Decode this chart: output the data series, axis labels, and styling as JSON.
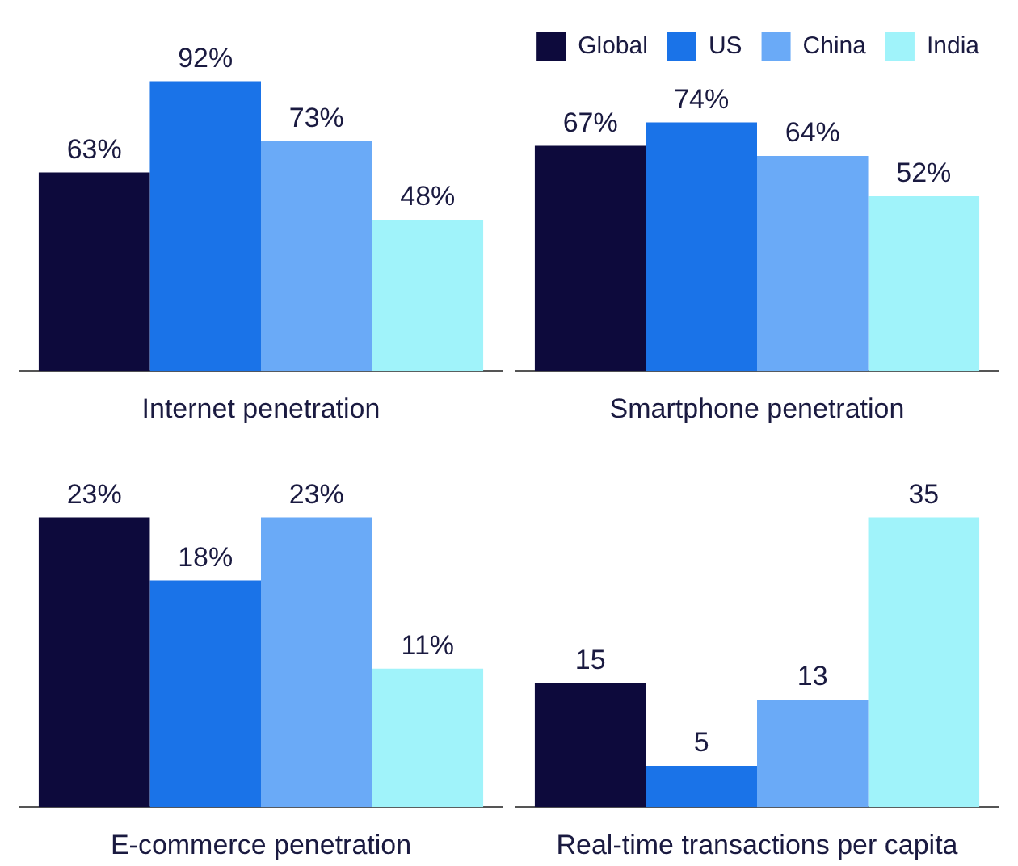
{
  "chart_data": [
    {
      "type": "bar",
      "xlabel": "Internet penetration",
      "categories": [
        null
      ],
      "series": [
        {
          "color": "#0d0a3c",
          "values": [
            63
          ],
          "value_labels": [
            "63%"
          ]
        },
        {
          "color": "#1a73e8",
          "values": [
            92
          ],
          "value_labels": [
            "92%"
          ]
        },
        {
          "color": "#6aaaf7",
          "values": [
            73
          ],
          "value_labels": [
            "73%"
          ]
        },
        {
          "color": "#a0f3fa",
          "values": [
            48
          ],
          "value_labels": [
            "48%"
          ]
        }
      ]
    },
    {
      "type": "bar",
      "xlabel": "Smartphone penetration",
      "legend": "top right",
      "categories": [
        null
      ],
      "series": [
        {
          "name": "Global",
          "color": "#0d0a3c",
          "values": [
            67
          ],
          "value_labels": [
            "67%"
          ]
        },
        {
          "name": "US",
          "color": "#1a73e8",
          "values": [
            74
          ],
          "value_labels": [
            "74%"
          ]
        },
        {
          "name": "China",
          "color": "#6aaaf7",
          "values": [
            64
          ],
          "value_labels": [
            "64%"
          ]
        },
        {
          "name": "India",
          "color": "#a0f3fa",
          "values": [
            52
          ],
          "value_labels": [
            "52%"
          ]
        }
      ]
    },
    {
      "type": "bar",
      "xlabel": "E-commerce penetration",
      "categories": [
        null
      ],
      "series": [
        {
          "color": "#0d0a3c",
          "values": [
            23
          ],
          "value_labels": [
            "23%"
          ]
        },
        {
          "color": "#1a73e8",
          "values": [
            18
          ],
          "value_labels": [
            "18%"
          ]
        },
        {
          "color": "#6aaaf7",
          "values": [
            23
          ],
          "value_labels": [
            "23%"
          ]
        },
        {
          "color": "#a0f3fa",
          "values": [
            11
          ],
          "value_labels": [
            "11%"
          ]
        }
      ]
    },
    {
      "type": "bar",
      "xlabel": "Real-time transactions per capita",
      "data_labels": true,
      "categories": [
        null
      ],
      "series": [
        {
          "color": "#0d0a3c",
          "values": [
            15
          ]
        },
        {
          "color": "#1a73e8",
          "values": [
            5
          ]
        },
        {
          "color": "#6aaaf7",
          "values": [
            13
          ]
        },
        {
          "color": "#a0f3fa",
          "values": [
            35
          ]
        }
      ]
    }
  ]
}
